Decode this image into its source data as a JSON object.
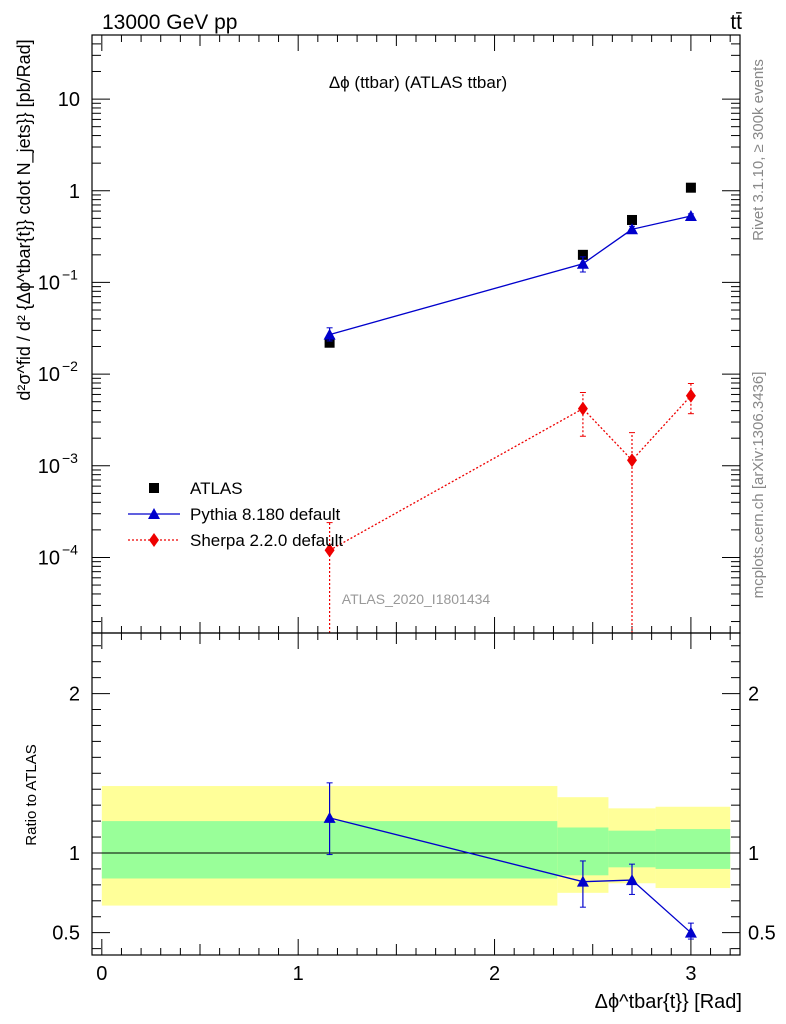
{
  "header": {
    "energy_label": "13000 GeV pp",
    "process_label": "tt̄"
  },
  "side_labels": {
    "rivet": "Rivet 3.1.10, ≥ 300k events",
    "mcplots": "mcplots.cern.ch [arXiv:1306.3436]"
  },
  "chart_data": [
    {
      "type": "scatter",
      "panel": "main",
      "title": "Δϕ (ttbar) (ATLAS ttbar)",
      "ylabel": "d²σ^fid / d² {Δϕ^tbar{t}} cdot N_jets}} [pb/Rad]",
      "yscale": "log",
      "ylim": [
        1.5e-05,
        50
      ],
      "xlim": [
        -0.05,
        3.25
      ],
      "y_ticks": [
        {
          "value": 0.0001,
          "label": "10",
          "exp": "−4"
        },
        {
          "value": 0.001,
          "label": "10",
          "exp": "−3"
        },
        {
          "value": 0.01,
          "label": "10",
          "exp": "−2"
        },
        {
          "value": 0.1,
          "label": "10",
          "exp": "−1"
        },
        {
          "value": 1,
          "label": "1",
          "exp": ""
        },
        {
          "value": 10,
          "label": "10",
          "exp": ""
        }
      ],
      "watermark": "ATLAS_2020_I1801434",
      "legend_position": "bottom-left",
      "series": [
        {
          "name": "ATLAS",
          "marker": "square",
          "color": "#000000",
          "x": [
            1.16,
            2.45,
            2.7,
            3.0
          ],
          "y": [
            0.022,
            0.2,
            0.48,
            1.08
          ]
        },
        {
          "name": "Pythia 8.180 default",
          "marker": "triangle",
          "color": "#0000cc",
          "line": "solid",
          "x": [
            1.16,
            2.45,
            2.7,
            3.0
          ],
          "y": [
            0.027,
            0.16,
            0.38,
            0.53
          ],
          "yerr_low": [
            0.023,
            0.13,
            0.35,
            0.5
          ],
          "yerr_high": [
            0.032,
            0.19,
            0.41,
            0.56
          ]
        },
        {
          "name": "Sherpa 2.2.0 default",
          "marker": "diamond",
          "color": "#ee0000",
          "line": "dotted",
          "x": [
            1.16,
            2.45,
            2.7,
            3.0
          ],
          "y": [
            0.00012,
            0.0042,
            0.00115,
            0.0058
          ],
          "yerr_low": [
            1e-06,
            0.0021,
            1e-06,
            0.0037
          ],
          "yerr_high": [
            0.00024,
            0.0063,
            0.0023,
            0.0079
          ]
        }
      ]
    },
    {
      "type": "scatter",
      "panel": "ratio",
      "ylabel": "Ratio to ATLAS",
      "xlabel": "Δϕ^tbar{t}} [Rad]",
      "ylim": [
        0.36,
        2.38
      ],
      "xlim": [
        -0.05,
        3.25
      ],
      "y_ticks": [
        {
          "value": 0.5,
          "label": "0.5"
        },
        {
          "value": 1,
          "label": "1"
        },
        {
          "value": 2,
          "label": "2"
        }
      ],
      "x_ticks": [
        {
          "value": 0,
          "label": "0"
        },
        {
          "value": 1,
          "label": "1"
        },
        {
          "value": 2,
          "label": "2"
        },
        {
          "value": 3,
          "label": "3"
        }
      ],
      "bands": [
        {
          "x0": 0.0,
          "x1": 2.32,
          "yellow": [
            0.67,
            1.42
          ],
          "green": [
            0.84,
            1.2
          ]
        },
        {
          "x0": 2.32,
          "x1": 2.58,
          "yellow": [
            0.75,
            1.35
          ],
          "green": [
            0.86,
            1.16
          ]
        },
        {
          "x0": 2.58,
          "x1": 2.82,
          "yellow": [
            0.81,
            1.28
          ],
          "green": [
            0.91,
            1.14
          ]
        },
        {
          "x0": 2.82,
          "x1": 3.2,
          "yellow": [
            0.78,
            1.29
          ],
          "green": [
            0.9,
            1.15
          ]
        }
      ],
      "series": [
        {
          "name": "Pythia 8.180 default",
          "marker": "triangle",
          "color": "#0000cc",
          "x": [
            1.16,
            2.45,
            2.7,
            3.0
          ],
          "y": [
            1.22,
            0.82,
            0.83,
            0.5
          ],
          "yerr_low": [
            0.99,
            0.66,
            0.74,
            0.46
          ],
          "yerr_high": [
            1.44,
            0.95,
            0.93,
            0.56
          ]
        }
      ]
    }
  ]
}
